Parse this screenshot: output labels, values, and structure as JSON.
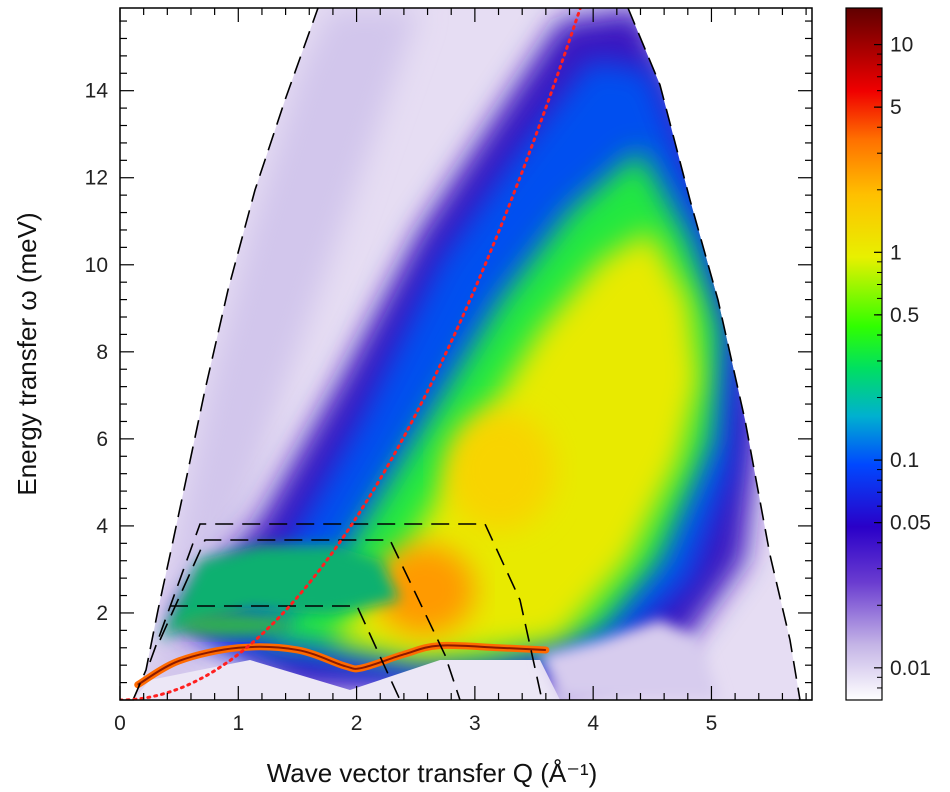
{
  "chart_data": {
    "type": "heatmap",
    "title": "",
    "xlabel": "Wave vector transfer Q (Å⁻¹)",
    "ylabel": "Energy transfer ω (meV)",
    "xlim": [
      0,
      5.85
    ],
    "ylim": [
      0,
      15.9
    ],
    "xticks": [
      0,
      1,
      2,
      3,
      4,
      5
    ],
    "yticks": [
      2,
      4,
      6,
      8,
      10,
      12,
      14
    ],
    "colorbar": {
      "scale": "log",
      "range": [
        0.007,
        15
      ],
      "ticks": [
        0.01,
        0.05,
        0.1,
        0.5,
        1,
        5,
        10
      ],
      "tick_labels": [
        "0.01",
        "0.05",
        "0.1",
        "0.5",
        "1",
        "5",
        "10"
      ],
      "colormap": [
        "#ffffff",
        "#9a80d0",
        "#3b00c0",
        "#0050ff",
        "#00c8c0",
        "#00ff20",
        "#e0f000",
        "#ffd000",
        "#ff7000",
        "#e00000",
        "#600000"
      ]
    },
    "colors": {
      "free_particle_curve": "#ff2020",
      "kinematic_boundaries": "#000000",
      "background_low": "#ffffff"
    },
    "free_particle_parabola": {
      "style": "dotted",
      "points": [
        [
          0,
          0
        ],
        [
          1,
          1.05
        ],
        [
          2,
          4.2
        ],
        [
          3,
          9.4
        ],
        [
          4,
          16.8
        ]
      ]
    },
    "phonon_roton_dispersion": {
      "points": [
        [
          0.15,
          0.35
        ],
        [
          0.5,
          0.9
        ],
        [
          1.0,
          1.2
        ],
        [
          1.5,
          1.15
        ],
        [
          1.9,
          0.78
        ],
        [
          2.05,
          0.74
        ],
        [
          2.4,
          1.05
        ],
        [
          2.7,
          1.25
        ],
        [
          3.2,
          1.2
        ],
        [
          3.6,
          1.15
        ]
      ]
    },
    "scattering_ridge": {
      "points": [
        [
          0.7,
          1.7
        ],
        [
          1.5,
          2.5
        ],
        [
          2.0,
          2.8
        ],
        [
          2.5,
          3.3
        ],
        [
          3.0,
          5.0
        ],
        [
          3.5,
          7.0
        ],
        [
          4.0,
          9.0
        ],
        [
          4.4,
          10.5
        ],
        [
          4.8,
          11.7
        ]
      ]
    }
  }
}
